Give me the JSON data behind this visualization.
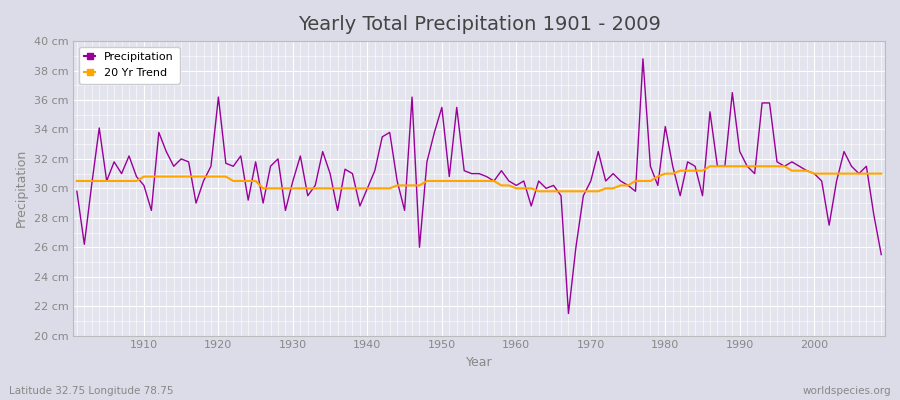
{
  "title": "Yearly Total Precipitation 1901 - 2009",
  "xlabel": "Year",
  "ylabel": "Precipitation",
  "subtitle": "Latitude 32.75 Longitude 78.75",
  "watermark": "worldspecies.org",
  "years": [
    1901,
    1902,
    1903,
    1904,
    1905,
    1906,
    1907,
    1908,
    1909,
    1910,
    1911,
    1912,
    1913,
    1914,
    1915,
    1916,
    1917,
    1918,
    1919,
    1920,
    1921,
    1922,
    1923,
    1924,
    1925,
    1926,
    1927,
    1928,
    1929,
    1930,
    1931,
    1932,
    1933,
    1934,
    1935,
    1936,
    1937,
    1938,
    1939,
    1940,
    1941,
    1942,
    1943,
    1944,
    1945,
    1946,
    1947,
    1948,
    1949,
    1950,
    1951,
    1952,
    1953,
    1954,
    1955,
    1956,
    1957,
    1958,
    1959,
    1960,
    1961,
    1962,
    1963,
    1964,
    1965,
    1966,
    1967,
    1968,
    1969,
    1970,
    1971,
    1972,
    1973,
    1974,
    1975,
    1976,
    1977,
    1978,
    1979,
    1980,
    1981,
    1982,
    1983,
    1984,
    1985,
    1986,
    1987,
    1988,
    1989,
    1990,
    1991,
    1992,
    1993,
    1994,
    1995,
    1996,
    1997,
    1998,
    1999,
    2000,
    2001,
    2002,
    2003,
    2004,
    2005,
    2006,
    2007,
    2008,
    2009
  ],
  "precip": [
    29.8,
    26.2,
    30.3,
    34.1,
    30.5,
    31.8,
    31.0,
    32.2,
    30.8,
    30.2,
    28.5,
    33.8,
    32.5,
    31.5,
    32.0,
    31.8,
    29.0,
    30.5,
    31.5,
    36.2,
    31.7,
    31.5,
    32.2,
    29.2,
    31.8,
    29.0,
    31.5,
    32.0,
    28.5,
    30.5,
    32.2,
    29.5,
    30.2,
    32.5,
    31.0,
    28.5,
    31.3,
    31.0,
    28.8,
    30.0,
    31.2,
    33.5,
    33.8,
    30.5,
    28.5,
    36.2,
    26.0,
    31.8,
    33.8,
    35.5,
    30.8,
    35.5,
    31.2,
    31.0,
    31.0,
    30.8,
    30.5,
    31.2,
    30.5,
    30.2,
    30.5,
    28.8,
    30.5,
    30.0,
    30.2,
    29.5,
    21.5,
    26.0,
    29.5,
    30.5,
    32.5,
    30.5,
    31.0,
    30.5,
    30.2,
    29.8,
    38.8,
    31.5,
    30.2,
    34.2,
    31.5,
    29.5,
    31.8,
    31.5,
    29.5,
    35.2,
    31.5,
    31.5,
    36.5,
    32.5,
    31.5,
    31.0,
    35.8,
    35.8,
    31.8,
    31.5,
    31.8,
    31.5,
    31.2,
    31.0,
    30.5,
    27.5,
    30.5,
    32.5,
    31.5,
    31.0,
    31.5,
    28.2,
    25.5
  ],
  "trend": [
    30.5,
    30.5,
    30.5,
    30.5,
    30.5,
    30.5,
    30.5,
    30.5,
    30.5,
    30.8,
    30.8,
    30.8,
    30.8,
    30.8,
    30.8,
    30.8,
    30.8,
    30.8,
    30.8,
    30.8,
    30.8,
    30.5,
    30.5,
    30.5,
    30.5,
    30.0,
    30.0,
    30.0,
    30.0,
    30.0,
    30.0,
    30.0,
    30.0,
    30.0,
    30.0,
    30.0,
    30.0,
    30.0,
    30.0,
    30.0,
    30.0,
    30.0,
    30.0,
    30.2,
    30.2,
    30.2,
    30.2,
    30.5,
    30.5,
    30.5,
    30.5,
    30.5,
    30.5,
    30.5,
    30.5,
    30.5,
    30.5,
    30.2,
    30.2,
    30.0,
    30.0,
    30.0,
    29.8,
    29.8,
    29.8,
    29.8,
    29.8,
    29.8,
    29.8,
    29.8,
    29.8,
    30.0,
    30.0,
    30.2,
    30.2,
    30.5,
    30.5,
    30.5,
    30.8,
    31.0,
    31.0,
    31.2,
    31.2,
    31.2,
    31.2,
    31.5,
    31.5,
    31.5,
    31.5,
    31.5,
    31.5,
    31.5,
    31.5,
    31.5,
    31.5,
    31.5,
    31.2,
    31.2,
    31.2,
    31.0,
    31.0,
    31.0,
    31.0,
    31.0,
    31.0,
    31.0,
    31.0,
    31.0,
    31.0
  ],
  "precip_color": "#990099",
  "trend_color": "#FFA500",
  "bg_color": "#dcdce8",
  "plot_bg_color": "#e4e4ee",
  "grid_color": "#ffffff",
  "ylim": [
    20,
    40
  ],
  "ytick_labels": [
    "20 cm",
    "22 cm",
    "24 cm",
    "26 cm",
    "28 cm",
    "30 cm",
    "32 cm",
    "34 cm",
    "36 cm",
    "38 cm",
    "40 cm"
  ],
  "ytick_values": [
    20,
    22,
    24,
    26,
    28,
    30,
    32,
    34,
    36,
    38,
    40
  ]
}
